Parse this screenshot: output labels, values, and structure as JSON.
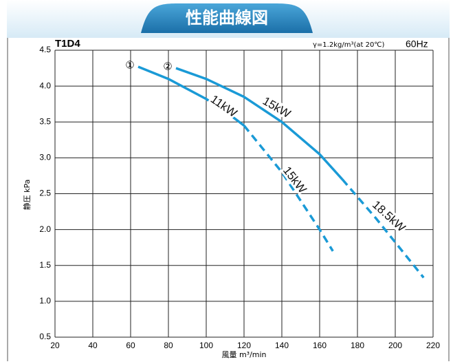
{
  "header": {
    "title": "性能曲線図"
  },
  "chart_data": {
    "type": "line",
    "model": "T1D4",
    "condition": "γ=1.2kg/m³(at 20℃)",
    "frequency": "60Hz",
    "x_label": "風量 m³/min",
    "y_label": "静圧 kPa",
    "xlim": [
      20,
      220
    ],
    "ylim": [
      0.5,
      4.5
    ],
    "xticks": [
      20,
      40,
      60,
      80,
      100,
      120,
      140,
      160,
      180,
      200,
      220
    ],
    "yticks": [
      0.5,
      {
        "value": 1,
        "label": "1.0"
      },
      1.5,
      {
        "value": 2,
        "label": "2.0"
      },
      2.5,
      {
        "value": 3,
        "label": "3.0"
      },
      3.5,
      {
        "value": 4,
        "label": "4.0"
      },
      4.5
    ],
    "grid": true,
    "series": [
      {
        "name": "①",
        "color": "#1a9ad6",
        "dash": false,
        "x": [
          64,
          80,
          100,
          110,
          120
        ],
        "values": [
          4.27,
          4.1,
          3.82,
          3.65,
          3.45
        ]
      },
      {
        "color": "#1a9ad6",
        "dash": true,
        "x": [
          120,
          140,
          160,
          167
        ],
        "values": [
          3.45,
          2.8,
          2.0,
          1.7
        ]
      },
      {
        "name": "②",
        "color": "#1a9ad6",
        "dash": false,
        "x": [
          84,
          100,
          120,
          140,
          160,
          172
        ],
        "values": [
          4.25,
          4.1,
          3.85,
          3.5,
          3.05,
          2.7
        ]
      },
      {
        "color": "#1a9ad6",
        "dash": true,
        "x": [
          172,
          190,
          215
        ],
        "values": [
          2.7,
          2.15,
          1.33
        ]
      }
    ],
    "annotations": [
      "11kW",
      "15kW",
      "15kW",
      "18.5kW"
    ]
  }
}
